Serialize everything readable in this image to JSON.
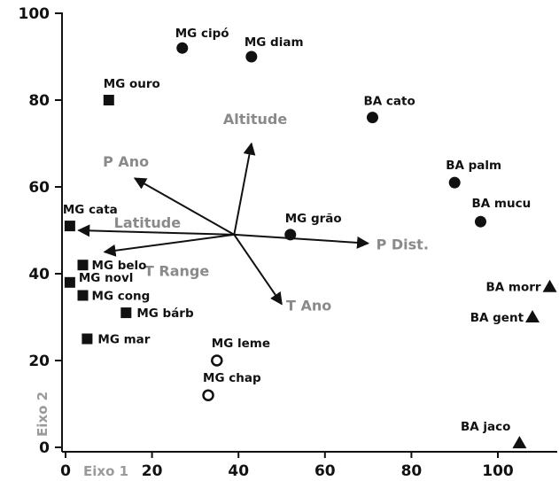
{
  "chart_data": {
    "type": "scatter",
    "xlabel": "Eixo 1",
    "ylabel": "Eixo 2",
    "xlim": [
      -1,
      113
    ],
    "ylim": [
      -1,
      102
    ],
    "xticks": [
      0,
      20,
      40,
      60,
      80,
      100
    ],
    "yticks": [
      0,
      20,
      40,
      60,
      80,
      100
    ],
    "grid": false,
    "colors": {
      "marker": "#111111",
      "vector": "#111111",
      "vector_label": "#8a8a8a"
    },
    "points": [
      {
        "label": "MG cipó",
        "x": 27,
        "y": 92,
        "marker": "circle"
      },
      {
        "label": "MG diam",
        "x": 43,
        "y": 90,
        "marker": "circle"
      },
      {
        "label": "MG ouro",
        "x": 10,
        "y": 80,
        "marker": "square"
      },
      {
        "label": "BA cato",
        "x": 71,
        "y": 76,
        "marker": "circle"
      },
      {
        "label": "BA palm",
        "x": 90,
        "y": 61,
        "marker": "circle"
      },
      {
        "label": "BA mucu",
        "x": 96,
        "y": 52,
        "marker": "circle"
      },
      {
        "label": "MG grão",
        "x": 52,
        "y": 49,
        "marker": "circle"
      },
      {
        "label": "MG cata",
        "x": 1,
        "y": 51,
        "marker": "square"
      },
      {
        "label": "MG belo",
        "x": 4,
        "y": 42,
        "marker": "square"
      },
      {
        "label": "MG novl",
        "x": 1,
        "y": 38,
        "marker": "square"
      },
      {
        "label": "MG cong",
        "x": 4,
        "y": 35,
        "marker": "square"
      },
      {
        "label": "MG bárb",
        "x": 14,
        "y": 31,
        "marker": "square"
      },
      {
        "label": "MG mar",
        "x": 5,
        "y": 25,
        "marker": "square"
      },
      {
        "label": "MG leme",
        "x": 35,
        "y": 20,
        "marker": "open-circle"
      },
      {
        "label": "MG chap",
        "x": 33,
        "y": 12,
        "marker": "open-circle"
      },
      {
        "label": "BA morr",
        "x": 112,
        "y": 37,
        "marker": "triangle"
      },
      {
        "label": "BA gent",
        "x": 108,
        "y": 30,
        "marker": "triangle"
      },
      {
        "label": "BA jaco",
        "x": 105,
        "y": 1,
        "marker": "triangle"
      }
    ],
    "vectors": [
      {
        "label": "Altitude",
        "x": 43,
        "y": 70
      },
      {
        "label": "P Ano",
        "x": 16,
        "y": 62
      },
      {
        "label": "Latitude",
        "x": 3,
        "y": 50
      },
      {
        "label": "T Range",
        "x": 9,
        "y": 45
      },
      {
        "label": "P Dist.",
        "x": 70,
        "y": 47
      },
      {
        "label": "T Ano",
        "x": 50,
        "y": 33
      }
    ],
    "vector_origin": {
      "x": 39,
      "y": 49
    }
  }
}
